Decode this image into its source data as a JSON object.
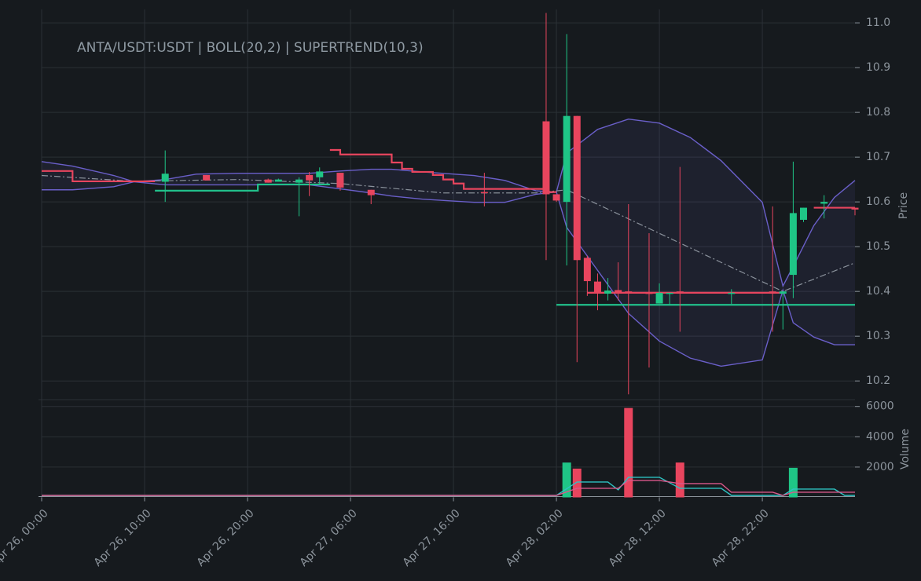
{
  "chart_data": {
    "type": "candlestick",
    "title": "ANTA/USDT:USDT | BOLL(20,2) | SUPERTREND(10,3)",
    "ylabel": "Price",
    "up_color": "#1fc586",
    "down_color": "#e8455e",
    "grid": true,
    "xlim": [
      "Apr 26, 00:00",
      "Apr 29, 07:00"
    ],
    "xticks": [
      "Apr 26, 00:00",
      "Apr 26, 10:00",
      "Apr 26, 20:00",
      "Apr 27, 06:00",
      "Apr 27, 16:00",
      "Apr 28, 02:00",
      "Apr 28, 12:00",
      "Apr 28, 22:00"
    ],
    "ylim": [
      10.16,
      11.03
    ],
    "yticks": [
      10.2,
      10.3,
      10.4,
      10.5,
      10.6,
      10.7,
      10.8,
      10.9,
      {
        "value": 11,
        "label": "11.0"
      }
    ],
    "x": [
      "Apr 26, 12:00",
      "Apr 26, 16:00",
      "Apr 26, 22:00",
      "Apr 26, 23:00",
      "Apr 27, 01:00",
      "Apr 27, 02:00",
      "Apr 27, 03:00",
      "Apr 27, 05:00",
      "Apr 27, 08:00",
      "Apr 27, 19:00",
      "Apr 28, 01:00",
      "Apr 28, 02:00",
      "Apr 28, 03:00",
      "Apr 28, 04:00",
      "Apr 28, 05:00",
      "Apr 28, 06:00",
      "Apr 28, 07:00",
      "Apr 28, 08:00",
      "Apr 28, 09:00",
      "Apr 28, 11:00",
      "Apr 28, 12:00",
      "Apr 28, 13:00",
      "Apr 28, 14:00",
      "Apr 28, 19:00",
      "Apr 28, 23:00",
      "Apr 29, 00:00",
      "Apr 29, 01:00",
      "Apr 29, 02:00",
      "Apr 29, 04:00",
      "Apr 29, 07:00"
    ],
    "open": [
      10.645,
      10.66,
      10.65,
      10.645,
      10.643,
      10.66,
      10.655,
      10.665,
      10.627,
      10.622,
      10.78,
      10.617,
      10.6,
      10.792,
      10.475,
      10.422,
      10.395,
      10.403,
      10.4,
      10.397,
      10.373,
      10.397,
      10.4,
      10.397,
      10.4,
      10.395,
      10.437,
      10.56,
      10.596,
      10.587
    ],
    "high": [
      10.715,
      10.66,
      10.652,
      10.652,
      10.655,
      10.667,
      10.677,
      10.665,
      10.627,
      10.665,
      11.022,
      10.617,
      10.975,
      10.792,
      10.48,
      10.44,
      10.43,
      10.465,
      10.595,
      10.53,
      10.418,
      10.397,
      10.678,
      10.405,
      10.59,
      10.4,
      10.69,
      10.587,
      10.615,
      10.587
    ],
    "low": [
      10.6,
      10.648,
      10.643,
      10.645,
      10.568,
      10.613,
      10.64,
      10.625,
      10.595,
      10.59,
      10.47,
      10.6,
      10.458,
      10.242,
      10.39,
      10.358,
      10.38,
      10.38,
      10.17,
      10.23,
      10.373,
      10.37,
      10.31,
      10.372,
      10.31,
      10.315,
      10.385,
      10.555,
      10.563,
      10.57
    ],
    "close": [
      10.663,
      10.648,
      10.643,
      10.65,
      10.65,
      10.648,
      10.668,
      10.632,
      10.615,
      10.62,
      10.617,
      10.603,
      10.792,
      10.47,
      10.423,
      10.395,
      10.402,
      10.397,
      10.397,
      10.395,
      10.397,
      10.397,
      10.395,
      10.397,
      10.395,
      10.4,
      10.575,
      10.587,
      10.6,
      10.583
    ],
    "volume": [
      0,
      0,
      0,
      0,
      0,
      0,
      0,
      0,
      0,
      0,
      0,
      0,
      2300,
      1900,
      0,
      0,
      0,
      0,
      5900,
      0,
      0,
      0,
      2300,
      0,
      0,
      0,
      1950,
      0,
      0,
      0
    ],
    "band": {
      "color": "#6a5fc9",
      "fill": "#6a5fc9",
      "x": [
        "Apr 26, 00:00",
        "Apr 26, 03:00",
        "Apr 26, 07:00",
        "Apr 26, 09:00",
        "Apr 26, 12:00",
        "Apr 26, 15:00",
        "Apr 26, 19:00",
        "Apr 27, 02:00",
        "Apr 27, 05:00",
        "Apr 27, 08:00",
        "Apr 27, 10:00",
        "Apr 27, 13:00",
        "Apr 27, 18:00",
        "Apr 27, 21:00",
        "Apr 28, 00:00",
        "Apr 28, 02:00",
        "Apr 28, 03:00",
        "Apr 28, 06:00",
        "Apr 28, 09:00",
        "Apr 28, 12:00",
        "Apr 28, 15:00",
        "Apr 28, 18:00",
        "Apr 28, 22:00",
        "Apr 29, 00:00",
        "Apr 29, 01:00",
        "Apr 29, 03:00",
        "Apr 29, 05:00",
        "Apr 29, 07:00"
      ],
      "upper": [
        10.69,
        10.68,
        10.659,
        10.645,
        10.65,
        10.662,
        10.664,
        10.664,
        10.669,
        10.673,
        10.673,
        10.667,
        10.659,
        10.648,
        10.625,
        10.622,
        10.709,
        10.762,
        10.785,
        10.776,
        10.744,
        10.692,
        10.599,
        10.412,
        10.456,
        10.547,
        10.61,
        10.648
      ],
      "lower": [
        10.627,
        10.627,
        10.634,
        10.645,
        10.638,
        10.638,
        10.638,
        10.638,
        10.629,
        10.62,
        10.613,
        10.606,
        10.599,
        10.599,
        10.617,
        10.622,
        10.543,
        10.447,
        10.351,
        10.289,
        10.251,
        10.233,
        10.247,
        10.403,
        10.33,
        10.298,
        10.281,
        10.281
      ]
    },
    "lines": [
      {
        "color": "#8a919b",
        "style": "dashdot",
        "step": false,
        "x": [
          "Apr 26, 00:00",
          "Apr 26, 09:00",
          "Apr 26, 19:00",
          "Apr 27, 05:00",
          "Apr 27, 15:00",
          "Apr 28, 00:00",
          "Apr 28, 03:00",
          "Apr 29, 00:00",
          "Apr 29, 07:00"
        ],
        "values": [
          10.659,
          10.646,
          10.65,
          10.641,
          10.62,
          10.62,
          10.627,
          10.4,
          10.464
        ]
      },
      {
        "color": "#e8455e",
        "style": "solid",
        "step": true,
        "x": [
          "Apr 26, 00:00",
          "Apr 26, 03:00",
          "Apr 26, 11:00",
          "Apr 26, 12:00",
          "Apr 27, 04:00",
          "Apr 27, 05:00",
          "Apr 27, 10:00",
          "Apr 27, 11:00",
          "Apr 27, 12:00",
          "Apr 27, 14:00",
          "Apr 27, 15:00",
          "Apr 27, 16:00",
          "Apr 27, 17:00",
          "Apr 28, 01:00",
          "Apr 28, 02:00",
          "Apr 28, 03:00",
          "Apr 28, 05:00",
          "Apr 29, 00:00",
          "Apr 29, 01:00",
          "Apr 29, 03:00",
          "Apr 29, 07:00"
        ],
        "values": [
          10.669,
          10.646,
          10.646,
          null,
          10.716,
          10.706,
          10.688,
          10.674,
          10.667,
          10.66,
          10.65,
          10.641,
          10.629,
          10.622,
          10.622,
          null,
          10.397,
          10.397,
          null,
          10.587,
          10.587
        ]
      },
      {
        "color": "#21c08b",
        "style": "solid",
        "step": true,
        "x": [
          "Apr 26, 11:00",
          "Apr 26, 21:00",
          "Apr 27, 04:00",
          "Apr 27, 05:00",
          "Apr 28, 02:00",
          "Apr 29, 07:00"
        ],
        "values": [
          10.625,
          10.639,
          10.639,
          null,
          10.37,
          10.37
        ]
      }
    ],
    "volume_panel": {
      "ylabel": "Volume",
      "ylim": [
        0,
        6400
      ],
      "yticks": [
        2000,
        4000,
        6000
      ],
      "lines": [
        {
          "color": "#2ec4c4",
          "x": [
            "Apr 26, 00:00",
            "Apr 28, 02:00",
            "Apr 28, 04:00",
            "Apr 28, 07:00",
            "Apr 28, 08:00",
            "Apr 28, 09:00",
            "Apr 28, 12:00",
            "Apr 28, 14:00",
            "Apr 28, 18:00",
            "Apr 28, 19:00",
            "Apr 29, 00:00",
            "Apr 29, 01:00",
            "Apr 29, 05:00",
            "Apr 29, 06:00",
            "Apr 29, 07:00"
          ],
          "values": [
            130,
            130,
            1013,
            1013,
            494,
            1325,
            1325,
            597,
            597,
            130,
            130,
            545,
            545,
            130,
            130
          ]
        },
        {
          "color": "#d9588a",
          "x": [
            "Apr 26, 00:00",
            "Apr 28, 02:00",
            "Apr 28, 04:00",
            "Apr 28, 08:00",
            "Apr 28, 09:00",
            "Apr 28, 12:00",
            "Apr 28, 14:00",
            "Apr 28, 18:00",
            "Apr 28, 19:00",
            "Apr 28, 23:00",
            "Apr 29, 00:00",
            "Apr 29, 01:00",
            "Apr 29, 07:00"
          ],
          "values": [
            130,
            130,
            597,
            597,
            1117,
            1117,
            909,
            909,
            338,
            338,
            130,
            338,
            338
          ]
        }
      ]
    }
  }
}
